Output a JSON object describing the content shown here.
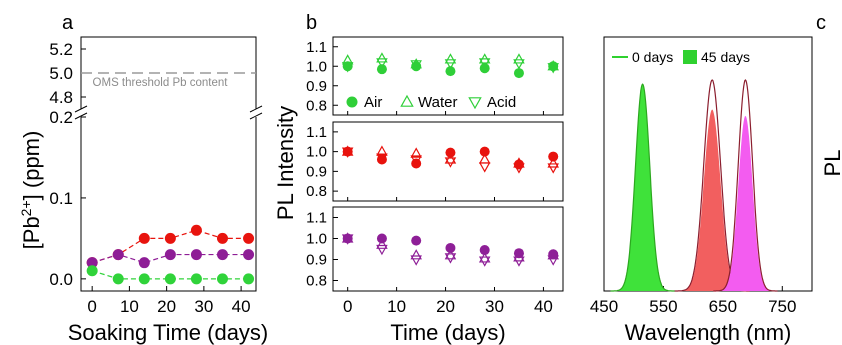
{
  "chart_data": [
    {
      "panel_label": "a",
      "type": "line",
      "xlabel": "Soaking Time (days)",
      "ylabel_base": "[Pb",
      "ylabel_sup": "2+",
      "ylabel_tail": "] (ppm)",
      "x_ticks": [
        0,
        10,
        20,
        30,
        40
      ],
      "xlim": [
        -3,
        44
      ],
      "lower_ylim": [
        -0.015,
        0.2
      ],
      "lower_ticks": [
        0.0,
        0.1,
        0.2
      ],
      "upper_ylim": [
        4.7,
        5.3
      ],
      "upper_ticks": [
        4.8,
        5.0,
        5.2
      ],
      "threshold": {
        "value": 5.0,
        "label": "OMS threshold Pb content"
      },
      "series": [
        {
          "color": "#e8140e",
          "x": [
            0,
            7,
            14,
            21,
            28,
            35,
            42
          ],
          "y": [
            0.02,
            0.03,
            0.05,
            0.05,
            0.06,
            0.05,
            0.05
          ]
        },
        {
          "color": "#8e1d96",
          "x": [
            0,
            7,
            14,
            21,
            28,
            35,
            42
          ],
          "y": [
            0.02,
            0.03,
            0.02,
            0.03,
            0.03,
            0.03,
            0.03
          ]
        },
        {
          "color": "#30d33a",
          "x": [
            0,
            7,
            14,
            21,
            28,
            35,
            42
          ],
          "y": [
            0.01,
            0.0,
            0.0,
            0.0,
            0.0,
            0.0,
            0.0
          ]
        }
      ]
    },
    {
      "panel_label": "b",
      "type": "scatter",
      "xlabel": "Time (days)",
      "ylabel": "PL Intensity",
      "x_ticks": [
        0,
        10,
        20,
        30,
        40
      ],
      "xlim": [
        -3,
        44
      ],
      "ylim": [
        0.75,
        1.15
      ],
      "y_ticks": [
        0.8,
        0.9,
        1.0,
        1.1
      ],
      "legend": [
        "Air",
        "Water",
        "Acid"
      ],
      "subplots": [
        {
          "color": "#2fcf38",
          "x": [
            0,
            7,
            14,
            21,
            28,
            35,
            42
          ],
          "air": [
            1.0,
            0.985,
            1.0,
            0.975,
            0.99,
            0.965,
            1.0
          ],
          "water": [
            1.03,
            1.04,
            1.01,
            1.035,
            1.035,
            1.035,
            1.0
          ],
          "acid": [
            1.0,
            1.02,
            1.01,
            1.015,
            1.02,
            1.015,
            0.995
          ]
        },
        {
          "color": "#e8120d",
          "x": [
            0,
            7,
            14,
            21,
            28,
            35,
            42
          ],
          "air": [
            1.0,
            0.96,
            0.94,
            0.995,
            1.0,
            0.935,
            0.975
          ],
          "water": [
            1.0,
            1.0,
            0.99,
            0.96,
            0.96,
            0.94,
            0.94
          ],
          "acid": [
            1.0,
            0.97,
            0.96,
            0.95,
            0.925,
            0.92,
            0.92
          ]
        },
        {
          "color": "#8e1f97",
          "x": [
            0,
            7,
            14,
            21,
            28,
            35,
            42
          ],
          "air": [
            1.0,
            1.0,
            0.99,
            0.955,
            0.945,
            0.93,
            0.925
          ],
          "water": [
            1.0,
            0.97,
            0.92,
            0.92,
            0.905,
            0.91,
            0.92
          ],
          "acid": [
            1.0,
            0.95,
            0.9,
            0.91,
            0.895,
            0.895,
            0.9
          ]
        }
      ]
    },
    {
      "panel_label": "c",
      "type": "area",
      "xlabel": "Wavelength (nm)",
      "ylabel_fragment": "PL",
      "x_ticks": [
        450,
        550,
        650,
        750
      ],
      "xlim": [
        450,
        800
      ],
      "legend": [
        "0 days",
        "45 days"
      ],
      "legend_color": "#2fd12f",
      "peaks": [
        {
          "fill": "#3fe23a",
          "line": "#2ca81f",
          "center": 515,
          "width": 12,
          "height0": 0.98,
          "height45": 0.98
        },
        {
          "fill": "#f25f5f",
          "line": "#8b1e2e",
          "center": 632,
          "width": 14,
          "height0": 1.0,
          "height45": 0.86
        },
        {
          "fill": "#f35cf0",
          "line": "#8b1e2e",
          "center": 688,
          "width": 12,
          "height0": 1.0,
          "height45": 0.83
        }
      ]
    }
  ]
}
